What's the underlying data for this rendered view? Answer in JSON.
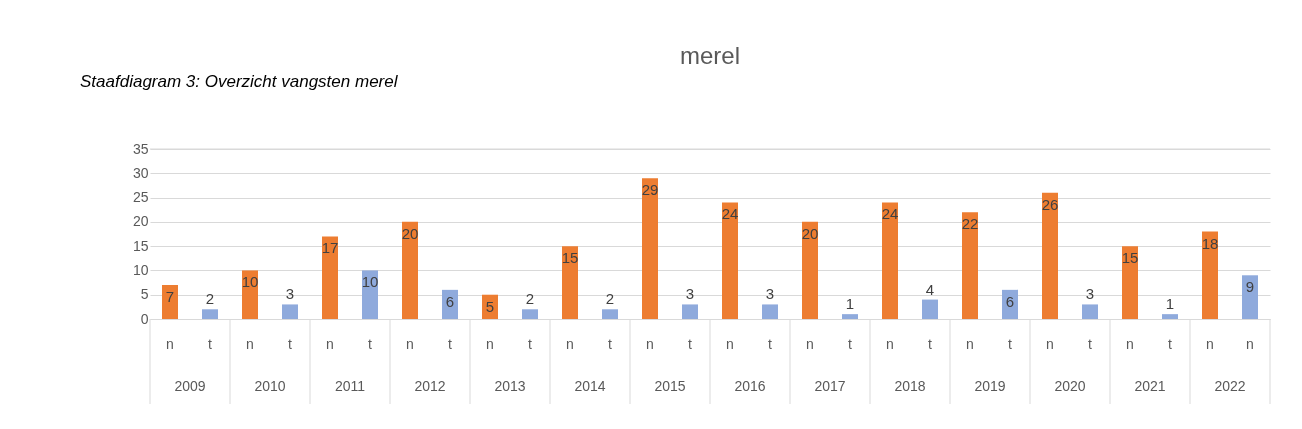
{
  "chart_data": {
    "type": "bar",
    "title": "merel",
    "categories": [
      "n",
      "t",
      "n",
      "t",
      "n",
      "t",
      "n",
      "t",
      "n",
      "t",
      "n",
      "t",
      "n",
      "t",
      "n",
      "t",
      "n",
      "t",
      "n",
      "t",
      "n",
      "t",
      "n",
      "t",
      "n",
      "t",
      "n",
      "n"
    ],
    "values": [
      7,
      2,
      10,
      3,
      17,
      10,
      20,
      6,
      5,
      2,
      15,
      2,
      29,
      3,
      24,
      3,
      20,
      1,
      24,
      4,
      22,
      6,
      26,
      3,
      15,
      1,
      18,
      9
    ],
    "colors": [
      "#ed7d31",
      "#8faadc",
      "#ed7d31",
      "#8faadc",
      "#ed7d31",
      "#8faadc",
      "#ed7d31",
      "#8faadc",
      "#ed7d31",
      "#8faadc",
      "#ed7d31",
      "#8faadc",
      "#ed7d31",
      "#8faadc",
      "#ed7d31",
      "#8faadc",
      "#ed7d31",
      "#8faadc",
      "#ed7d31",
      "#8faadc",
      "#ed7d31",
      "#8faadc",
      "#ed7d31",
      "#8faadc",
      "#ed7d31",
      "#8faadc",
      "#ed7d31",
      "#8faadc"
    ],
    "annotations": [
      "Staafdiagram 3: Overzicht vangsten merel",
      "2009",
      "2010",
      "2011",
      "2012",
      "2013",
      "2014",
      "2015",
      "2016",
      "2017",
      "2018",
      "2019",
      "2020",
      "2021",
      "2022"
    ],
    "ylim": [
      0,
      35
    ],
    "yticks": [
      0,
      5,
      10,
      15,
      20,
      25,
      30,
      35
    ],
    "grid": "y",
    "data_labels": true,
    "legend": false
  }
}
